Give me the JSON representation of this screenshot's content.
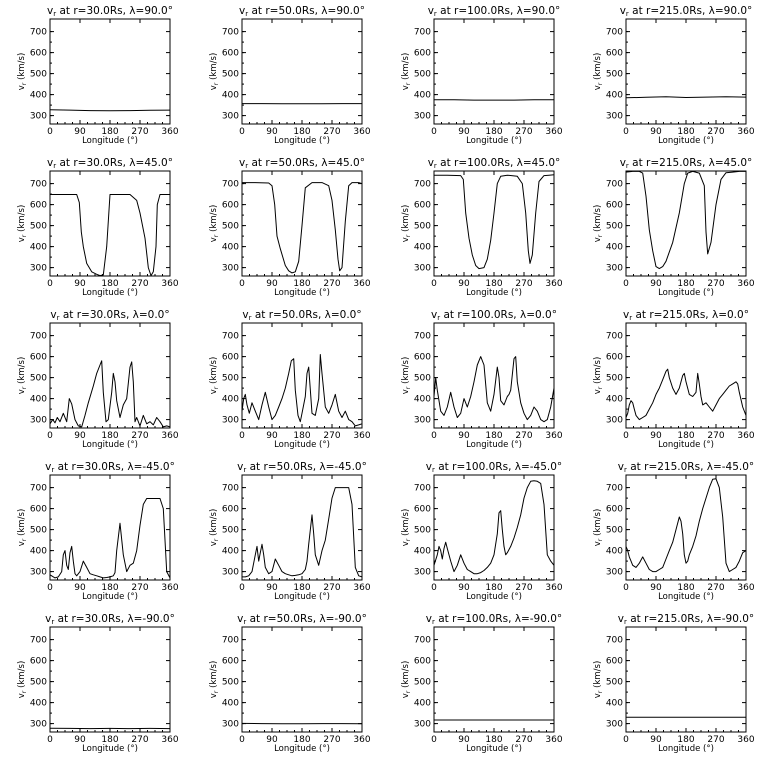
{
  "figure": {
    "xlabel": "Longitude  (°)",
    "ylabel": "vr (km/s)",
    "ylabel_sub": "r",
    "ylabel_main": "v",
    "ylabel_rest": " (km/s)",
    "yticks": [
      300,
      400,
      500,
      600,
      700
    ],
    "xticks": [
      0,
      90,
      180,
      270,
      360
    ],
    "ylim": [
      260,
      760
    ],
    "xlim": [
      0,
      360
    ]
  },
  "chart_data": [
    {
      "type": "line",
      "title": "vr at r=30.0Rs, λ=90.0°",
      "r": "30.0",
      "lat": "90.0",
      "x": [
        0,
        60,
        120,
        180,
        240,
        300,
        360
      ],
      "values": [
        328,
        326,
        324,
        323,
        324,
        325,
        326
      ]
    },
    {
      "type": "line",
      "title": "vr at r=50.0Rs, λ=90.0°",
      "r": "50.0",
      "lat": "90.0",
      "x": [
        0,
        60,
        120,
        180,
        240,
        300,
        360
      ],
      "values": [
        357,
        357,
        356,
        356,
        356,
        357,
        357
      ]
    },
    {
      "type": "line",
      "title": "vr at r=100.0Rs, λ=90.0°",
      "r": "100.0",
      "lat": "90.0",
      "x": [
        0,
        60,
        120,
        180,
        240,
        300,
        360
      ],
      "values": [
        375,
        375,
        374,
        374,
        374,
        375,
        375
      ]
    },
    {
      "type": "line",
      "title": "vr at r=215.0Rs, λ=90.0°",
      "r": "215.0",
      "lat": "90.0",
      "x": [
        0,
        60,
        120,
        180,
        240,
        300,
        360
      ],
      "values": [
        385,
        387,
        390,
        386,
        388,
        390,
        388
      ]
    },
    {
      "type": "line",
      "title": "vr at r=30.0Rs, λ=45.0°",
      "r": "30.0",
      "lat": "45.0",
      "x": [
        0,
        30,
        60,
        80,
        88,
        94,
        100,
        110,
        125,
        140,
        150,
        160,
        170,
        180,
        200,
        240,
        260,
        270,
        285,
        295,
        303,
        310,
        318,
        322,
        330,
        340,
        350,
        360
      ],
      "values": [
        648,
        648,
        648,
        648,
        610,
        470,
        400,
        320,
        280,
        268,
        262,
        265,
        400,
        648,
        648,
        648,
        620,
        560,
        440,
        300,
        262,
        280,
        400,
        600,
        648,
        648,
        648,
        648
      ]
    },
    {
      "type": "line",
      "title": "vr at r=50.0Rs, λ=45.0°",
      "r": "50.0",
      "lat": "45.0",
      "x": [
        0,
        40,
        80,
        90,
        98,
        105,
        115,
        130,
        140,
        150,
        160,
        170,
        180,
        190,
        210,
        240,
        260,
        270,
        280,
        288,
        293,
        300,
        310,
        320,
        330,
        340,
        350,
        360
      ],
      "values": [
        705,
        705,
        703,
        690,
        600,
        450,
        390,
        310,
        285,
        275,
        280,
        330,
        500,
        680,
        705,
        705,
        690,
        620,
        480,
        340,
        285,
        300,
        520,
        690,
        705,
        705,
        705,
        700
      ]
    },
    {
      "type": "line",
      "title": "vr at r=100.0Rs, λ=45.0°",
      "r": "100.0",
      "lat": "45.0",
      "x": [
        0,
        40,
        80,
        88,
        95,
        105,
        115,
        125,
        135,
        150,
        160,
        170,
        180,
        190,
        200,
        220,
        250,
        265,
        275,
        283,
        288,
        295,
        305,
        315,
        330,
        345,
        360
      ],
      "values": [
        740,
        740,
        738,
        720,
        560,
        440,
        360,
        310,
        295,
        300,
        340,
        430,
        560,
        700,
        735,
        740,
        735,
        700,
        560,
        380,
        320,
        360,
        560,
        710,
        738,
        740,
        742
      ]
    },
    {
      "type": "line",
      "title": "vr at r=215.0Rs, λ=45.0°",
      "r": "215.0",
      "lat": "45.0",
      "x": [
        0,
        20,
        40,
        50,
        60,
        70,
        80,
        90,
        100,
        110,
        120,
        140,
        160,
        175,
        185,
        200,
        220,
        235,
        240,
        245,
        255,
        270,
        285,
        300,
        320,
        340,
        360
      ],
      "values": [
        755,
        758,
        758,
        750,
        640,
        480,
        380,
        305,
        295,
        305,
        330,
        420,
        560,
        700,
        750,
        758,
        750,
        690,
        470,
        365,
        420,
        600,
        720,
        752,
        755,
        758,
        758
      ]
    },
    {
      "type": "line",
      "title": "vr at r=30.0Rs, λ=0.0°",
      "r": "30.0",
      "lat": "0.0",
      "x": [
        0,
        8,
        15,
        22,
        30,
        40,
        50,
        58,
        65,
        75,
        85,
        95,
        105,
        115,
        130,
        140,
        150,
        155,
        160,
        168,
        175,
        185,
        190,
        195,
        200,
        210,
        220,
        230,
        240,
        245,
        250,
        255,
        260,
        270,
        280,
        290,
        300,
        310,
        320,
        330,
        340,
        350,
        360
      ],
      "values": [
        280,
        300,
        285,
        310,
        290,
        330,
        290,
        400,
        375,
        300,
        270,
        265,
        320,
        380,
        460,
        520,
        560,
        580,
        430,
        290,
        300,
        430,
        520,
        480,
        390,
        310,
        370,
        400,
        550,
        575,
        480,
        290,
        310,
        270,
        320,
        280,
        290,
        275,
        310,
        290,
        265,
        270,
        265
      ]
    },
    {
      "type": "line",
      "title": "vr at r=50.0Rs, λ=0.0°",
      "r": "50.0",
      "lat": "0.0",
      "x": [
        0,
        5,
        10,
        15,
        22,
        30,
        40,
        50,
        60,
        70,
        80,
        90,
        100,
        110,
        120,
        130,
        140,
        148,
        155,
        160,
        168,
        175,
        180,
        190,
        195,
        200,
        210,
        220,
        230,
        235,
        240,
        250,
        260,
        270,
        280,
        290,
        300,
        310,
        320,
        330,
        340,
        350,
        360
      ],
      "values": [
        340,
        400,
        420,
        370,
        330,
        380,
        340,
        300,
        370,
        430,
        360,
        300,
        320,
        360,
        400,
        450,
        520,
        580,
        590,
        440,
        320,
        290,
        330,
        410,
        520,
        550,
        330,
        320,
        400,
        610,
        520,
        360,
        330,
        370,
        420,
        340,
        310,
        340,
        300,
        290,
        270,
        275,
        280
      ]
    },
    {
      "type": "line",
      "title": "vr at r=100.0Rs, λ=0.0°",
      "r": "100.0",
      "lat": "0.0",
      "x": [
        0,
        5,
        10,
        20,
        30,
        40,
        50,
        60,
        70,
        80,
        90,
        100,
        110,
        120,
        130,
        140,
        150,
        160,
        170,
        180,
        190,
        195,
        200,
        210,
        220,
        225,
        230,
        240,
        245,
        250,
        260,
        270,
        280,
        290,
        300,
        310,
        320,
        330,
        340,
        350,
        360
      ],
      "values": [
        410,
        500,
        440,
        340,
        320,
        360,
        430,
        360,
        310,
        330,
        400,
        360,
        410,
        480,
        560,
        600,
        560,
        380,
        340,
        420,
        550,
        500,
        390,
        370,
        410,
        420,
        440,
        590,
        600,
        480,
        380,
        330,
        300,
        320,
        360,
        340,
        300,
        290,
        300,
        360,
        450
      ]
    },
    {
      "type": "line",
      "title": "vr at r=215.0Rs, λ=0.0°",
      "r": "215.0",
      "lat": "0.0",
      "x": [
        0,
        5,
        10,
        15,
        20,
        25,
        30,
        40,
        50,
        60,
        70,
        80,
        90,
        100,
        110,
        120,
        125,
        130,
        140,
        150,
        160,
        170,
        175,
        180,
        190,
        200,
        210,
        215,
        220,
        225,
        230,
        240,
        250,
        260,
        270,
        280,
        290,
        300,
        310,
        320,
        330,
        335,
        340,
        350,
        360
      ],
      "values": [
        310,
        330,
        370,
        390,
        380,
        350,
        320,
        300,
        310,
        320,
        350,
        380,
        420,
        450,
        490,
        530,
        540,
        500,
        450,
        420,
        450,
        510,
        520,
        480,
        420,
        410,
        430,
        520,
        470,
        410,
        370,
        380,
        360,
        340,
        370,
        400,
        420,
        440,
        460,
        470,
        480,
        470,
        430,
        360,
        320
      ]
    },
    {
      "type": "line",
      "title": "vr at r=30.0Rs, λ=-45.0°",
      "r": "30.0",
      "lat": "-45.0",
      "x": [
        0,
        15,
        25,
        35,
        40,
        45,
        50,
        55,
        60,
        65,
        70,
        75,
        80,
        90,
        100,
        110,
        120,
        130,
        140,
        150,
        160,
        170,
        180,
        190,
        195,
        200,
        210,
        220,
        230,
        240,
        250,
        260,
        270,
        280,
        290,
        300,
        310,
        320,
        330,
        340,
        350,
        360
      ],
      "values": [
        285,
        270,
        275,
        300,
        380,
        400,
        330,
        310,
        390,
        420,
        350,
        290,
        280,
        300,
        350,
        320,
        290,
        285,
        280,
        275,
        270,
        272,
        275,
        280,
        295,
        400,
        530,
        380,
        300,
        330,
        340,
        400,
        520,
        620,
        648,
        648,
        648,
        648,
        648,
        600,
        300,
        270
      ]
    },
    {
      "type": "line",
      "title": "vr at r=50.0Rs, λ=-45.0°",
      "r": "50.0",
      "lat": "-45.0",
      "x": [
        0,
        10,
        20,
        30,
        40,
        45,
        50,
        55,
        60,
        65,
        70,
        80,
        90,
        100,
        110,
        120,
        130,
        140,
        150,
        160,
        170,
        180,
        190,
        195,
        200,
        210,
        215,
        220,
        230,
        240,
        250,
        260,
        270,
        280,
        290,
        300,
        310,
        320,
        330,
        340,
        350,
        360
      ],
      "values": [
        275,
        275,
        280,
        300,
        380,
        420,
        350,
        390,
        430,
        380,
        320,
        290,
        300,
        360,
        330,
        300,
        290,
        285,
        280,
        282,
        285,
        290,
        310,
        350,
        430,
        570,
        480,
        380,
        330,
        400,
        450,
        550,
        650,
        700,
        700,
        700,
        700,
        700,
        620,
        320,
        280,
        275
      ]
    },
    {
      "type": "line",
      "title": "vr at r=100.0Rs, λ=-45.0°",
      "r": "100.0",
      "lat": "-45.0",
      "x": [
        0,
        10,
        15,
        20,
        25,
        30,
        35,
        40,
        50,
        60,
        70,
        80,
        90,
        100,
        110,
        120,
        130,
        140,
        150,
        160,
        170,
        180,
        190,
        195,
        200,
        205,
        210,
        215,
        220,
        230,
        240,
        250,
        260,
        270,
        280,
        290,
        300,
        310,
        320,
        330,
        340,
        350,
        360
      ],
      "values": [
        330,
        380,
        420,
        400,
        360,
        410,
        440,
        410,
        350,
        300,
        330,
        380,
        340,
        310,
        300,
        290,
        290,
        295,
        305,
        320,
        340,
        380,
        480,
        580,
        590,
        500,
        420,
        380,
        390,
        420,
        460,
        510,
        570,
        650,
        700,
        730,
        733,
        730,
        720,
        620,
        380,
        350,
        330
      ]
    },
    {
      "type": "line",
      "title": "vr at r=215.0Rs, λ=-45.0°",
      "r": "215.0",
      "lat": "-45.0",
      "x": [
        0,
        5,
        10,
        15,
        20,
        30,
        40,
        50,
        60,
        70,
        80,
        90,
        100,
        110,
        120,
        130,
        140,
        150,
        160,
        165,
        170,
        175,
        180,
        185,
        190,
        200,
        210,
        220,
        230,
        240,
        250,
        260,
        270,
        280,
        290,
        300,
        310,
        320,
        330,
        340,
        350,
        360
      ],
      "values": [
        420,
        400,
        370,
        350,
        330,
        320,
        340,
        370,
        340,
        310,
        300,
        300,
        310,
        320,
        360,
        400,
        440,
        500,
        560,
        540,
        480,
        380,
        340,
        350,
        380,
        420,
        470,
        540,
        600,
        650,
        700,
        740,
        742,
        700,
        560,
        340,
        300,
        310,
        320,
        350,
        390,
        400
      ]
    },
    {
      "type": "line",
      "title": "vr at r=30.0Rs, λ=-90.0°",
      "r": "30.0",
      "lat": "-90.0",
      "x": [
        0,
        60,
        120,
        180,
        240,
        300,
        360
      ],
      "values": [
        278,
        277,
        276,
        277,
        276,
        277,
        276
      ]
    },
    {
      "type": "line",
      "title": "vr at r=50.0Rs, λ=-90.0°",
      "r": "50.0",
      "lat": "-90.0",
      "x": [
        0,
        60,
        120,
        180,
        240,
        300,
        360
      ],
      "values": [
        301,
        300,
        299,
        299,
        300,
        300,
        299
      ]
    },
    {
      "type": "line",
      "title": "vr at r=100.0Rs, λ=-90.0°",
      "r": "100.0",
      "lat": "-90.0",
      "x": [
        0,
        60,
        120,
        180,
        240,
        300,
        360
      ],
      "values": [
        317,
        317,
        317,
        317,
        317,
        317,
        317
      ]
    },
    {
      "type": "line",
      "title": "vr at r=215.0Rs, λ=-90.0°",
      "r": "215.0",
      "lat": "-90.0",
      "x": [
        0,
        60,
        120,
        180,
        240,
        300,
        360
      ],
      "values": [
        330,
        330,
        330,
        330,
        330,
        330,
        330
      ]
    }
  ]
}
